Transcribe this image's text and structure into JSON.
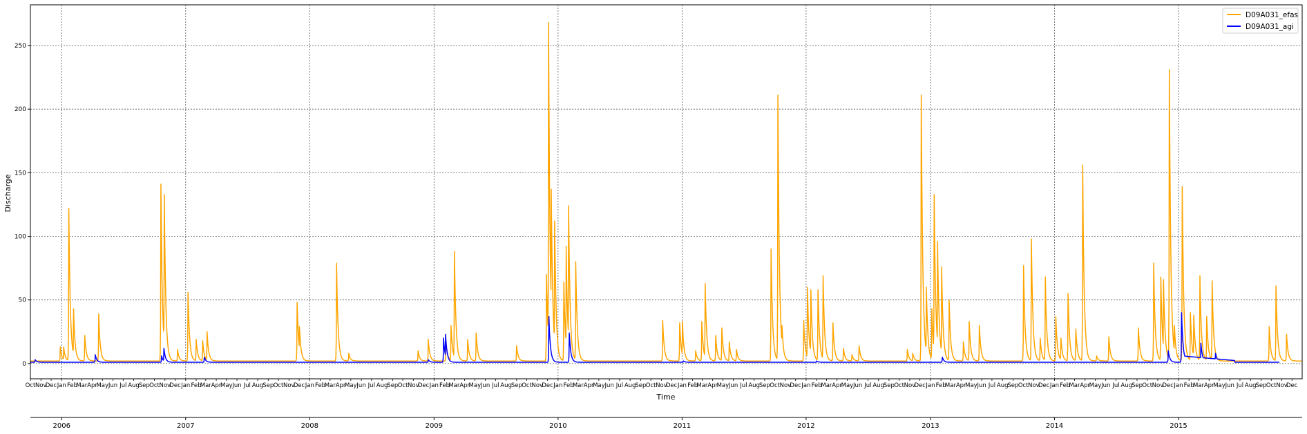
{
  "chart_data": {
    "type": "line",
    "title": "",
    "xlabel": "Time",
    "ylabel": "Discharge",
    "grid": true,
    "legend_position": "top-right",
    "xlim": [
      "2005-10-01",
      "2015-12-31"
    ],
    "ylim": [
      -12,
      282
    ],
    "y_ticks": [
      0,
      50,
      100,
      150,
      200,
      250
    ],
    "x_minor_label_sequence": [
      "Jan",
      "Feb",
      "Mar",
      "Apr",
      "May",
      "Jun",
      "Jul",
      "Aug",
      "Sep",
      "Oct",
      "Nov",
      "Dec"
    ],
    "x_major_ticks": [
      "2006",
      "2007",
      "2008",
      "2009",
      "2010",
      "2011",
      "2012",
      "2013",
      "2014",
      "2015"
    ],
    "series": [
      {
        "name": "D09A031_efas",
        "color": "#FFA500",
        "baseline": 2,
        "peaks": [
          [
            "2005-12-28",
            13
          ],
          [
            "2006-01-07",
            13
          ],
          [
            "2006-01-22",
            122
          ],
          [
            "2006-02-05",
            43
          ],
          [
            "2006-03-10",
            22
          ],
          [
            "2006-04-20",
            39
          ],
          [
            "2006-10-20",
            141
          ],
          [
            "2006-10-30",
            133
          ],
          [
            "2006-12-08",
            11
          ],
          [
            "2007-01-08",
            56
          ],
          [
            "2007-02-01",
            19
          ],
          [
            "2007-02-20",
            18
          ],
          [
            "2007-03-05",
            25
          ],
          [
            "2007-11-25",
            48
          ],
          [
            "2007-12-02",
            29
          ],
          [
            "2008-03-20",
            79
          ],
          [
            "2008-04-25",
            8
          ],
          [
            "2008-11-15",
            10
          ],
          [
            "2008-12-15",
            19
          ],
          [
            "2009-02-05",
            18
          ],
          [
            "2009-02-20",
            30
          ],
          [
            "2009-03-02",
            88
          ],
          [
            "2009-04-10",
            19
          ],
          [
            "2009-05-05",
            24
          ],
          [
            "2009-09-01",
            14
          ],
          [
            "2009-11-28",
            70
          ],
          [
            "2009-12-04",
            268
          ],
          [
            "2009-12-12",
            137
          ],
          [
            "2009-12-22",
            112
          ],
          [
            "2010-01-18",
            64
          ],
          [
            "2010-01-25",
            92
          ],
          [
            "2010-02-01",
            124
          ],
          [
            "2010-02-22",
            80
          ],
          [
            "2010-11-05",
            34
          ],
          [
            "2010-12-25",
            32
          ],
          [
            "2011-01-02",
            33
          ],
          [
            "2011-02-10",
            10
          ],
          [
            "2011-02-28",
            33
          ],
          [
            "2011-03-10",
            63
          ],
          [
            "2011-04-10",
            22
          ],
          [
            "2011-04-28",
            28
          ],
          [
            "2011-05-20",
            17
          ],
          [
            "2011-06-10",
            11
          ],
          [
            "2011-09-20",
            90
          ],
          [
            "2011-10-10",
            211
          ],
          [
            "2011-10-22",
            30
          ],
          [
            "2011-12-25",
            34
          ],
          [
            "2012-01-05",
            60
          ],
          [
            "2012-01-15",
            58
          ],
          [
            "2012-02-05",
            58
          ],
          [
            "2012-02-20",
            69
          ],
          [
            "2012-03-20",
            32
          ],
          [
            "2012-04-20",
            12
          ],
          [
            "2012-05-15",
            7
          ],
          [
            "2012-06-05",
            14
          ],
          [
            "2012-10-25",
            11
          ],
          [
            "2012-11-10",
            8
          ],
          [
            "2012-12-05",
            211
          ],
          [
            "2012-12-20",
            60
          ],
          [
            "2013-01-05",
            43
          ],
          [
            "2013-01-12",
            133
          ],
          [
            "2013-01-22",
            96
          ],
          [
            "2013-02-03",
            76
          ],
          [
            "2013-02-25",
            50
          ],
          [
            "2013-04-08",
            17
          ],
          [
            "2013-04-25",
            33
          ],
          [
            "2013-05-25",
            30
          ],
          [
            "2013-10-02",
            77
          ],
          [
            "2013-10-25",
            98
          ],
          [
            "2013-11-20",
            20
          ],
          [
            "2013-12-05",
            68
          ],
          [
            "2014-01-05",
            37
          ],
          [
            "2014-01-20",
            20
          ],
          [
            "2014-02-10",
            55
          ],
          [
            "2014-03-05",
            27
          ],
          [
            "2014-03-25",
            156
          ],
          [
            "2014-05-05",
            6
          ],
          [
            "2014-06-10",
            21
          ],
          [
            "2014-09-05",
            28
          ],
          [
            "2014-10-20",
            79
          ],
          [
            "2014-11-10",
            68
          ],
          [
            "2014-11-18",
            66
          ],
          [
            "2014-12-05",
            231
          ],
          [
            "2014-12-20",
            30
          ],
          [
            "2015-01-12",
            139
          ],
          [
            "2015-02-05",
            40
          ],
          [
            "2015-02-15",
            38
          ],
          [
            "2015-03-05",
            69
          ],
          [
            "2015-03-25",
            37
          ],
          [
            "2015-04-10",
            65
          ],
          [
            "2015-09-25",
            29
          ],
          [
            "2015-10-15",
            61
          ],
          [
            "2015-11-15",
            23
          ]
        ]
      },
      {
        "name": "D09A031_agi",
        "color": "#0000FF",
        "baseline": 1,
        "end": "2015-10-25",
        "peaks": [
          [
            "2005-10-15",
            3
          ],
          [
            "2006-04-10",
            7
          ],
          [
            "2006-10-22",
            6
          ],
          [
            "2006-10-29",
            12
          ],
          [
            "2007-02-25",
            5
          ],
          [
            "2008-12-15",
            3
          ],
          [
            "2009-01-29",
            20
          ],
          [
            "2009-02-04",
            23
          ],
          [
            "2009-12-05",
            37
          ],
          [
            "2010-02-03",
            24
          ],
          [
            "2011-01-05",
            2
          ],
          [
            "2012-02-01",
            2
          ],
          [
            "2013-02-05",
            5
          ],
          [
            "2014-12-02",
            10
          ],
          [
            "2015-01-10",
            40
          ],
          [
            "2015-03-08",
            16
          ],
          [
            "2015-04-20",
            8
          ]
        ],
        "plateaus": [
          [
            "2015-01-10",
            "2015-06-15",
            6
          ]
        ]
      }
    ]
  }
}
